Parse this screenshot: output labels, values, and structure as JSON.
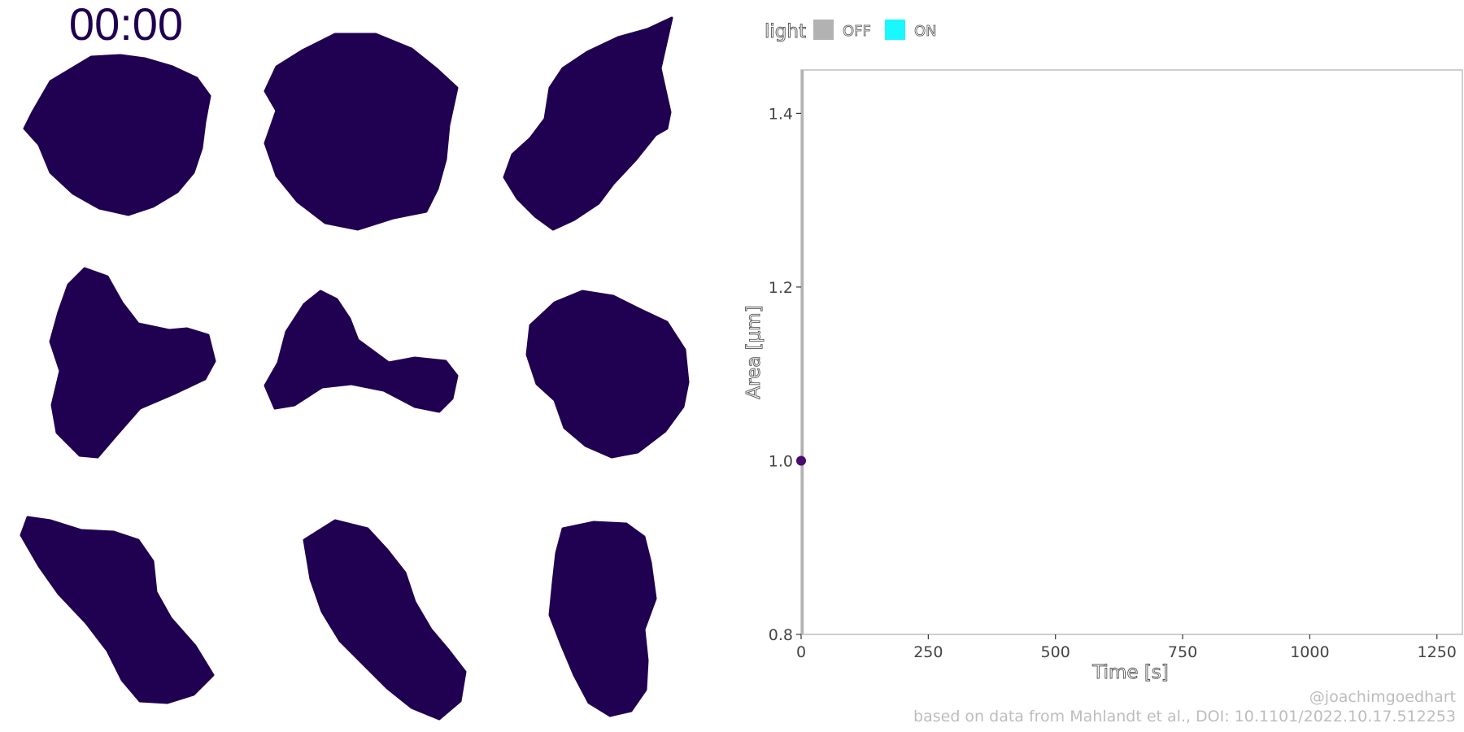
{
  "timer": {
    "text": "00:00"
  },
  "credits": {
    "handle": "@joachimgoedhart",
    "source": "based on data from Mahlandt et al., DOI: 10.1101/2022.10.17.512253"
  },
  "colors": {
    "cell_fill": "#200050",
    "light_off": "#b2b2b2",
    "light_on": "#19f7ff",
    "point": "#4b0a6e",
    "panel_border": "#bfbfbf"
  },
  "cells": {
    "count": 9,
    "layout": "3x3 grid",
    "fill": "#200050"
  },
  "chart_data": {
    "type": "scatter",
    "title": "",
    "xlabel": "Time [s]",
    "ylabel": "Area [μm]",
    "xlim": [
      0,
      1300
    ],
    "ylim": [
      0.8,
      1.45
    ],
    "x_ticks": [
      0,
      250,
      500,
      750,
      1000,
      1250
    ],
    "y_ticks": [
      0.8,
      1.0,
      1.2,
      1.4
    ],
    "x_tick_labels": [
      "0",
      "250",
      "500",
      "750",
      "1000",
      "1250"
    ],
    "y_tick_labels": [
      "0.8",
      "1.0",
      "1.2",
      "1.4"
    ],
    "grid": false,
    "legend": {
      "title": "light",
      "position": "top-left",
      "entries": [
        {
          "label": "OFF",
          "color": "#b2b2b2"
        },
        {
          "label": "ON",
          "color": "#19f7ff"
        }
      ]
    },
    "light_bands": [
      {
        "state": "OFF",
        "x_start": 0,
        "x_end": 5
      }
    ],
    "series": [
      {
        "points": [
          {
            "x": 0,
            "y": 1.0
          }
        ]
      }
    ]
  }
}
